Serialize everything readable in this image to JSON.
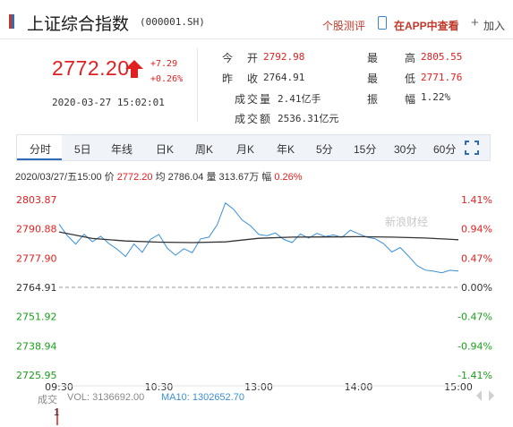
{
  "header": {
    "title": "上证综合指数",
    "code": "(000001.SH)",
    "stock_review": "个股测评",
    "app_link": "在APP中查看",
    "add_label": "加入",
    "accent_color": "#c0392b"
  },
  "quote": {
    "price": "2772.20",
    "change": "+7.29",
    "change_pct": "+0.26%",
    "datetime": "2020-03-27 15:02:01",
    "direction": "up"
  },
  "stats": [
    {
      "label": "今 开",
      "value": "2792.98",
      "color": "#e02020"
    },
    {
      "label": "昨 收",
      "value": "2764.91",
      "color": "#333333"
    },
    {
      "label": "成交量",
      "value": "2.41亿手",
      "color": "#333333"
    },
    {
      "label": "成交额",
      "value": "2536.31亿元",
      "color": "#333333"
    },
    {
      "label": "最 高",
      "value": "2805.55",
      "color": "#e02020"
    },
    {
      "label": "最 低",
      "value": "2771.76",
      "color": "#e02020"
    },
    {
      "label": "振 幅",
      "value": "1.22%",
      "color": "#333333"
    }
  ],
  "tabs": [
    "分时",
    "5日",
    "年线",
    "日K",
    "周K",
    "月K",
    "年K",
    "5分",
    "15分",
    "30分",
    "60分"
  ],
  "active_tab": "分时",
  "info_line": {
    "datetime": "2020/03/27/五15:00",
    "price_label": "价",
    "price": "2772.20",
    "avg_label": "均",
    "avg": "2786.04",
    "vol_label": "量",
    "vol": "313.67万",
    "pct_label": "幅",
    "pct": "0.26%"
  },
  "volume": {
    "label": "成交",
    "vol_text": "VOL: 3136692.00",
    "ma_text": "MA10: 1302652.70",
    "tick": "1"
  },
  "watermark": "新浪财经",
  "chart_data": {
    "type": "line",
    "title": "",
    "prev_close": 2764.91,
    "ylim": [
      2725.95,
      2803.87
    ],
    "y_ticks_left": [
      "2803.87",
      "2790.88",
      "2777.90",
      "2764.91",
      "2751.92",
      "2738.94",
      "2725.95"
    ],
    "y_ticks_right": [
      "1.41%",
      "0.94%",
      "0.47%",
      "0.00%",
      "-0.47%",
      "-0.94%",
      "-1.41%"
    ],
    "x_ticks": [
      "09:30",
      "10:30",
      "13:00",
      "14:00",
      "15:00"
    ],
    "series": [
      {
        "name": "价",
        "color": "#3a8fd9",
        "x": [
          0,
          5,
          10,
          15,
          20,
          25,
          30,
          35,
          40,
          45,
          50,
          55,
          60,
          65,
          70,
          75,
          80,
          85,
          90,
          95,
          100,
          105,
          110,
          115,
          120,
          125,
          130,
          135,
          140,
          145,
          150,
          155,
          160,
          165,
          170,
          175,
          180,
          185,
          190,
          195,
          200,
          205,
          210,
          215,
          220,
          225,
          230,
          235,
          240
        ],
        "values": [
          2792.98,
          2787.8,
          2784.1,
          2788.5,
          2785.2,
          2787.6,
          2784.3,
          2781.8,
          2778.6,
          2784.2,
          2780.5,
          2786.3,
          2788.4,
          2782.3,
          2779.2,
          2782.1,
          2780.3,
          2786.4,
          2787.2,
          2792.6,
          2802.4,
          2799.5,
          2794.8,
          2792.3,
          2788.4,
          2787.8,
          2789.1,
          2786.2,
          2784.8,
          2788.6,
          2786.8,
          2788.9,
          2787.5,
          2788.2,
          2787.1,
          2790.3,
          2788.7,
          2787.2,
          2786.5,
          2784.3,
          2780.6,
          2782.6,
          2778.8,
          2774.7,
          2772.6,
          2772.1,
          2771.4,
          2772.5,
          2772.2
        ]
      },
      {
        "name": "均",
        "color": "#333333",
        "x": [
          0,
          20,
          40,
          60,
          80,
          100,
          120,
          140,
          160,
          180,
          200,
          220,
          240
        ],
        "values": [
          2789.5,
          2786.6,
          2785.5,
          2785.0,
          2784.8,
          2785.1,
          2786.7,
          2787.2,
          2787.3,
          2787.4,
          2787.2,
          2786.8,
          2786.04
        ]
      }
    ],
    "grid": false
  }
}
